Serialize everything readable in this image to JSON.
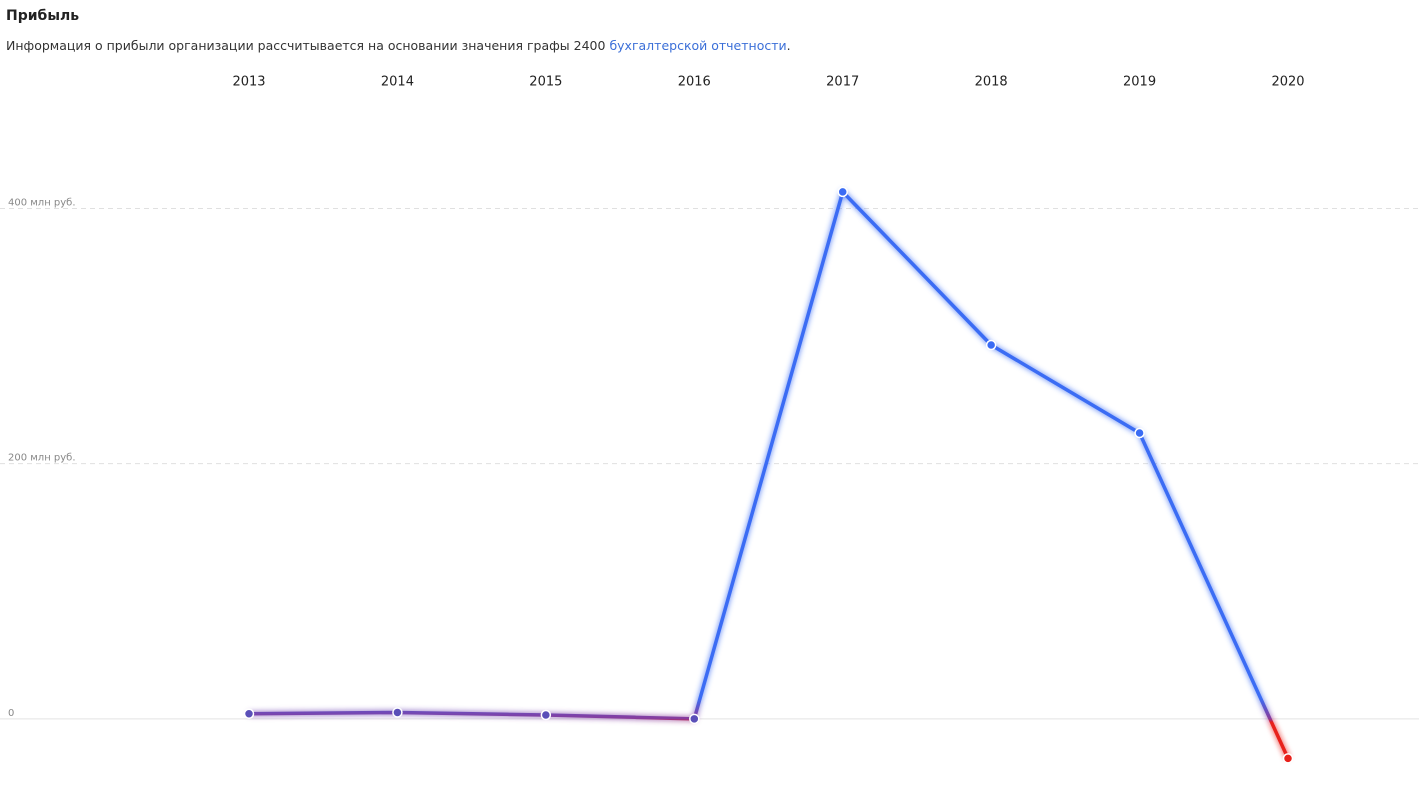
{
  "chart_data": {
    "type": "line",
    "title": "Прибыль",
    "subtitle": "Информация о прибыли организации рассчитывается на основании значения графы 2400",
    "subtitle_link": "бухгалтерской отчетности",
    "subtitle_end": ".",
    "categories": [
      "2013",
      "2014",
      "2015",
      "2016",
      "2017",
      "2018",
      "2019",
      "2020"
    ],
    "values": [
      4,
      5,
      3,
      0,
      413,
      293,
      224,
      -31
    ],
    "color": "#3a6cf4",
    "negative_color": "#e8201a",
    "ylim": [
      -55,
      485
    ],
    "yticks": [
      0,
      {
        "value": 200,
        "label": "200 млн руб."
      },
      {
        "value": 400,
        "label": "400 млн руб."
      }
    ],
    "grid": true
  }
}
